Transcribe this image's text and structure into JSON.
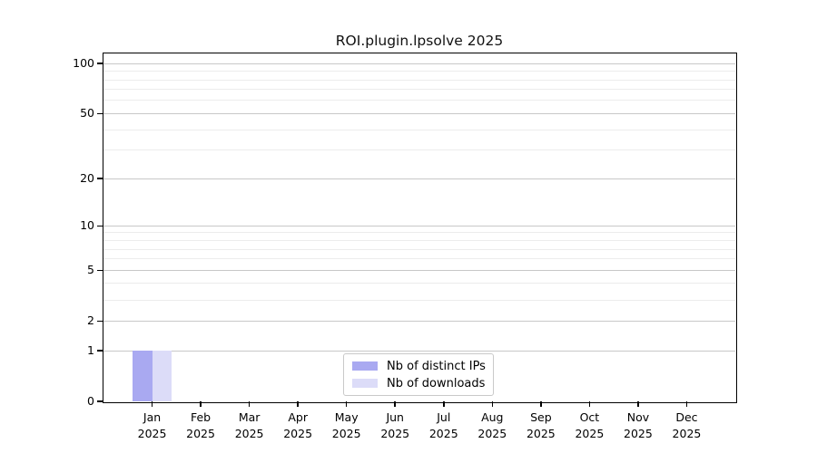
{
  "figure": {
    "title": "ROI.plugin.lpsolve 2025",
    "background": "#ffffff"
  },
  "chart_data": {
    "type": "bar",
    "title": "ROI.plugin.lpsolve 2025",
    "xlabel": "",
    "ylabel": "",
    "yscale": "log1p",
    "ylim": [
      0,
      115
    ],
    "grid": true,
    "categories": [
      {
        "month": "Jan",
        "year": "2025"
      },
      {
        "month": "Feb",
        "year": "2025"
      },
      {
        "month": "Mar",
        "year": "2025"
      },
      {
        "month": "Apr",
        "year": "2025"
      },
      {
        "month": "May",
        "year": "2025"
      },
      {
        "month": "Jun",
        "year": "2025"
      },
      {
        "month": "Jul",
        "year": "2025"
      },
      {
        "month": "Aug",
        "year": "2025"
      },
      {
        "month": "Sep",
        "year": "2025"
      },
      {
        "month": "Oct",
        "year": "2025"
      },
      {
        "month": "Nov",
        "year": "2025"
      },
      {
        "month": "Dec",
        "year": "2025"
      }
    ],
    "series": [
      {
        "name": "Nb of distinct IPs",
        "color": "#a9a9f1",
        "values": [
          1,
          0,
          0,
          0,
          0,
          0,
          0,
          0,
          0,
          0,
          0,
          0
        ]
      },
      {
        "name": "Nb of downloads",
        "color": "#dcdcf8",
        "values": [
          1,
          0,
          0,
          0,
          0,
          0,
          0,
          0,
          0,
          0,
          0,
          0
        ]
      }
    ],
    "y_major_ticks": [
      100,
      50,
      20,
      10,
      5,
      2,
      1,
      0
    ],
    "y_minor_gridlines": [
      90,
      80,
      70,
      60,
      40,
      30,
      9,
      8,
      7,
      6,
      4,
      3
    ],
    "legend_position": "inside-bottom-center"
  },
  "colors": {
    "axis": "#000000",
    "grid_major": "#c8c8c8",
    "grid_minor": "#ececec",
    "legend_border": "#c9c9c9",
    "text": "#000000"
  }
}
